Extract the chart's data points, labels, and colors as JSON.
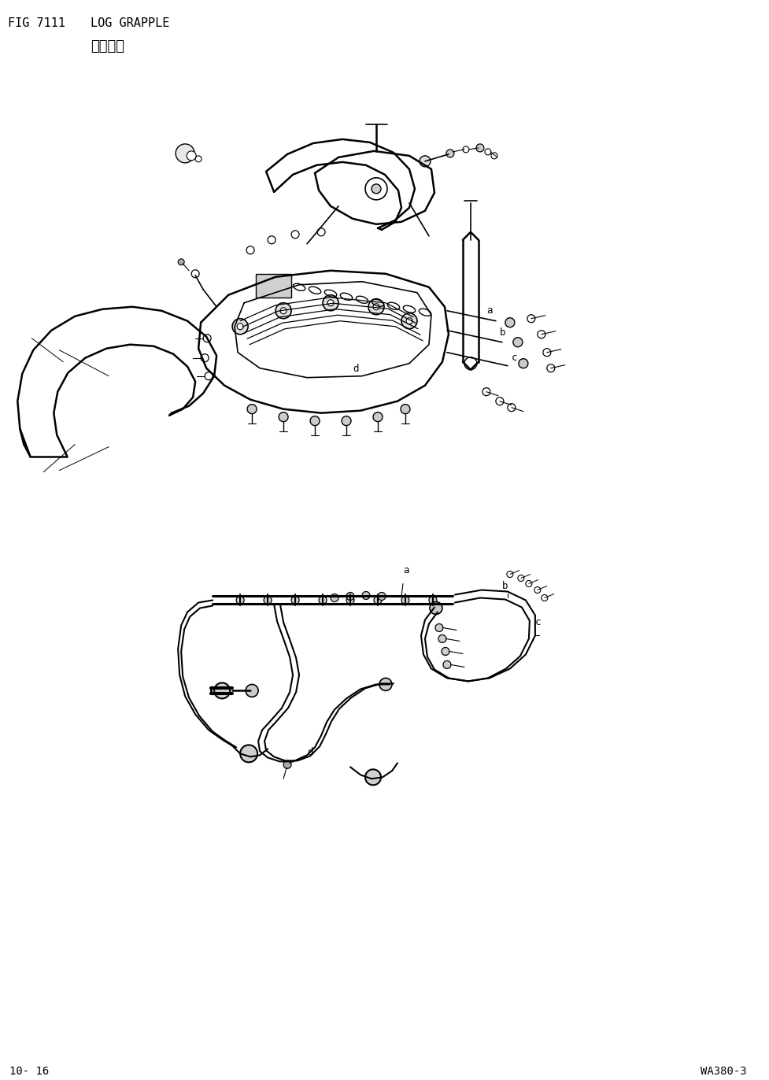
{
  "title_line1": "FIG 7111",
  "title_line2": "LOG GRAPPLE",
  "title_line3": "原木抓具",
  "footer_left": "10- 16",
  "footer_right": "WA380-3",
  "bg_color": "#ffffff",
  "line_color": "#000000",
  "label_a1": "a",
  "label_b1": "b",
  "label_c1": "c",
  "label_d1": "d",
  "label_a2": "a",
  "label_b2": "b",
  "label_c2": "c",
  "label_d2": "d",
  "fig_width": 9.77,
  "fig_height": 13.72,
  "dpi": 100
}
